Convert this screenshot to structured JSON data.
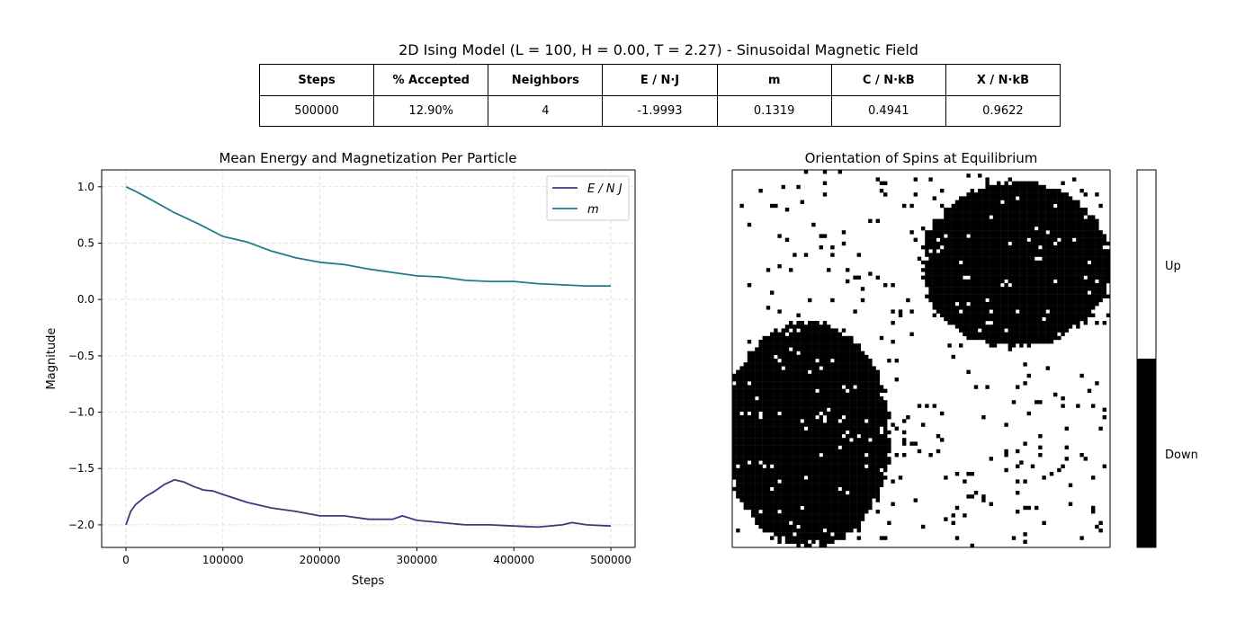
{
  "figure": {
    "title": "2D Ising Model (L = 100, H = 0.00, T = 2.27) - Sinusoidal Magnetic Field"
  },
  "stats_table": {
    "headers": [
      "Steps",
      "% Accepted",
      "Neighbors",
      "E / N·J",
      "m",
      "C / N·kB",
      "X / N·kB"
    ],
    "values": [
      "500000",
      "12.90%",
      "4",
      "-1.9993",
      "0.1319",
      "0.4941",
      "0.9622"
    ]
  },
  "chart_data": [
    {
      "type": "line",
      "title": "Mean Energy and Magnetization Per Particle",
      "xlabel": "Steps",
      "ylabel": "Magnitude",
      "xlim": [
        -25000,
        525000
      ],
      "ylim": [
        -2.2,
        1.15
      ],
      "xticks": [
        0,
        100000,
        200000,
        300000,
        400000,
        500000
      ],
      "xtick_labels": [
        "0",
        "100000",
        "200000",
        "300000",
        "400000",
        "500000"
      ],
      "yticks": [
        -2.0,
        -1.5,
        -1.0,
        -0.5,
        0.0,
        0.5,
        1.0
      ],
      "ytick_labels": [
        "−2.0",
        "−1.5",
        "−1.0",
        "−0.5",
        "0.0",
        "0.5",
        "1.0"
      ],
      "grid": true,
      "legend_position": "upper right",
      "series": [
        {
          "name": "E / N J",
          "color": "#3b3a7c",
          "x": [
            0,
            5000,
            10000,
            20000,
            30000,
            40000,
            50000,
            60000,
            70000,
            80000,
            90000,
            100000,
            125000,
            150000,
            175000,
            200000,
            225000,
            250000,
            275000,
            285000,
            300000,
            325000,
            350000,
            375000,
            400000,
            425000,
            450000,
            460000,
            475000,
            500000
          ],
          "y": [
            -2.0,
            -1.88,
            -1.82,
            -1.75,
            -1.7,
            -1.64,
            -1.6,
            -1.62,
            -1.66,
            -1.69,
            -1.7,
            -1.73,
            -1.8,
            -1.85,
            -1.88,
            -1.92,
            -1.92,
            -1.95,
            -1.95,
            -1.92,
            -1.96,
            -1.98,
            -2.0,
            -2.0,
            -2.01,
            -2.02,
            -2.0,
            -1.98,
            -2.0,
            -2.01
          ]
        },
        {
          "name": "m",
          "color": "#1f7c8c",
          "x": [
            0,
            10000,
            25000,
            50000,
            75000,
            100000,
            125000,
            150000,
            175000,
            200000,
            225000,
            250000,
            275000,
            300000,
            325000,
            350000,
            375000,
            400000,
            425000,
            450000,
            475000,
            500000
          ],
          "y": [
            1.0,
            0.96,
            0.89,
            0.77,
            0.67,
            0.56,
            0.51,
            0.43,
            0.37,
            0.33,
            0.31,
            0.27,
            0.24,
            0.21,
            0.2,
            0.17,
            0.16,
            0.16,
            0.14,
            0.13,
            0.12,
            0.12
          ]
        }
      ]
    },
    {
      "type": "heatmap",
      "title": "Orientation of Spins at Equilibrium",
      "grid_size": 100,
      "colormap": {
        "down": "#000000",
        "up": "#ffffff"
      },
      "colorbar_labels": [
        "Up",
        "Down"
      ],
      "domains": [
        {
          "label": "Down",
          "cx": 0.75,
          "cy": 0.25,
          "rx": 0.25,
          "ry": 0.22
        },
        {
          "label": "Down",
          "cx": 0.2,
          "cy": 0.7,
          "rx": 0.22,
          "ry": 0.3
        }
      ],
      "noise_density": 0.03
    }
  ]
}
